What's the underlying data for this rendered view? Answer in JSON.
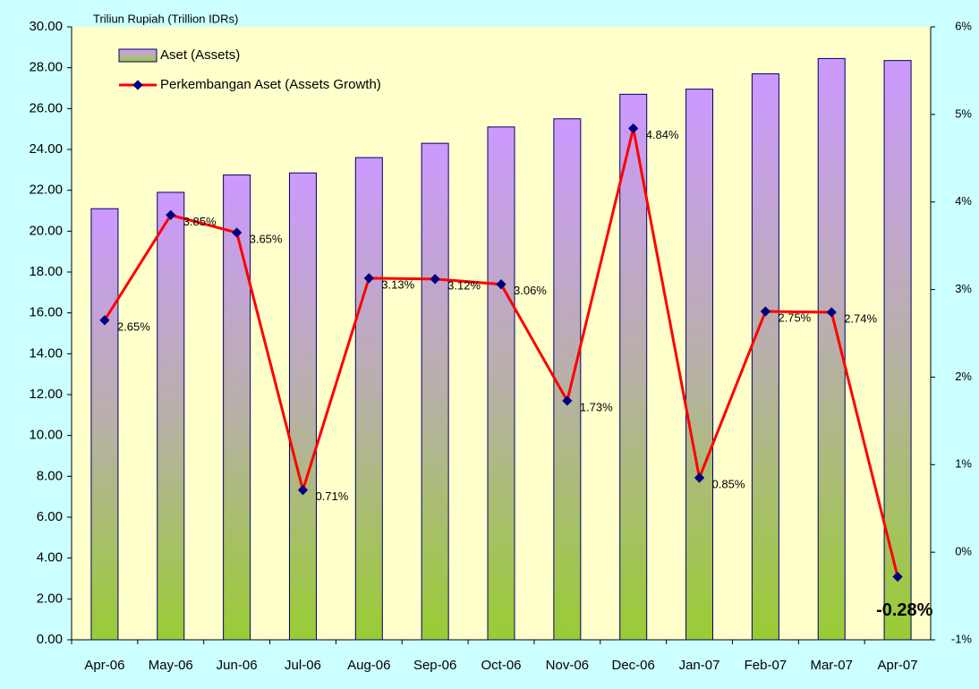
{
  "chart_data": {
    "type": "bar-line",
    "y_label": "Triliun Rupiah (Trillion IDRs)",
    "categories": [
      "Apr-06",
      "May-06",
      "Jun-06",
      "Jul-06",
      "Aug-06",
      "Sep-06",
      "Oct-06",
      "Nov-06",
      "Dec-06",
      "Jan-07",
      "Feb-07",
      "Mar-07",
      "Apr-07"
    ],
    "series": [
      {
        "name": "Aset (Assets)",
        "type": "bar",
        "color": "#cc99ff",
        "values": [
          21.1,
          21.9,
          22.75,
          22.85,
          23.6,
          24.3,
          25.1,
          25.5,
          26.7,
          26.95,
          27.7,
          28.45,
          28.35
        ]
      },
      {
        "name": "Perkembangan Aset (Assets Growth)",
        "type": "line",
        "axis": "y2",
        "color": "#ff0000",
        "values": [
          2.65,
          3.85,
          3.65,
          0.71,
          3.13,
          3.12,
          3.06,
          1.73,
          4.84,
          0.85,
          2.75,
          2.74,
          -0.28
        ],
        "value_labels": [
          "2.65%",
          "3.85%",
          "3.65%",
          "0.71%",
          "3.13%",
          "3.12%",
          "3.06%",
          "1.73%",
          "4.84%",
          "0.85%",
          "2.75%",
          "2.74%",
          "-0.28%"
        ]
      }
    ],
    "ylim": [
      0,
      30
    ],
    "yticks": [
      {
        "value": 0,
        "label": "0.00"
      },
      {
        "value": 2,
        "label": "2.00"
      },
      {
        "value": 4,
        "label": "4.00"
      },
      {
        "value": 6,
        "label": "6.00"
      },
      {
        "value": 8,
        "label": "8.00"
      },
      {
        "value": 10,
        "label": "10.00"
      },
      {
        "value": 12,
        "label": "12.00"
      },
      {
        "value": 14,
        "label": "14.00"
      },
      {
        "value": 16,
        "label": "16.00"
      },
      {
        "value": 18,
        "label": "18.00"
      },
      {
        "value": 20,
        "label": "20.00"
      },
      {
        "value": 22,
        "label": "22.00"
      },
      {
        "value": 24,
        "label": "24.00"
      },
      {
        "value": 26,
        "label": "26.00"
      },
      {
        "value": 28,
        "label": "28.00"
      },
      {
        "value": 30,
        "label": "30.00"
      }
    ],
    "y2lim": [
      -1,
      6
    ],
    "y2ticks": [
      {
        "value": -1,
        "label": "-1%"
      },
      {
        "value": 0,
        "label": "0%"
      },
      {
        "value": 1,
        "label": "1%"
      },
      {
        "value": 2,
        "label": "2%"
      },
      {
        "value": 3,
        "label": "3%"
      },
      {
        "value": 4,
        "label": "4%"
      },
      {
        "value": 5,
        "label": "5%"
      },
      {
        "value": 6,
        "label": "6%"
      }
    ],
    "legend": "top-left"
  }
}
